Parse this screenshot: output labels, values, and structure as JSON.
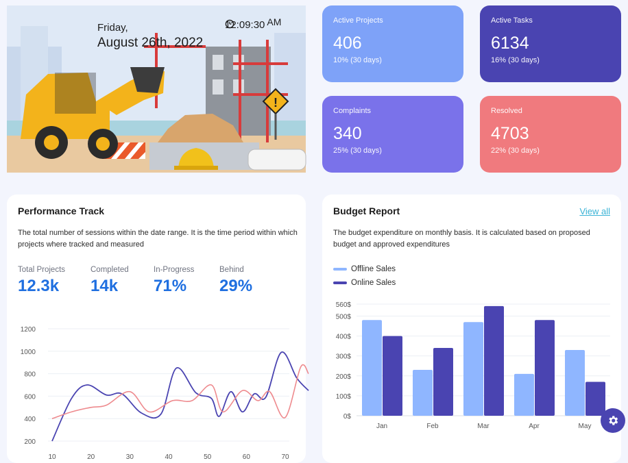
{
  "hero": {
    "day": "Friday,",
    "date": "August 26th, 2022",
    "time": "12:09:30",
    "ampm": "AM",
    "illustration": "construction-scene"
  },
  "stats": [
    {
      "label": "Active Projects",
      "value": "406",
      "sub": "10% (30 days)",
      "color": "#7ea2f8"
    },
    {
      "label": "Active Tasks",
      "value": "6134",
      "sub": "16% (30 days)",
      "color": "#4a44b1"
    },
    {
      "label": "Complaints",
      "value": "340",
      "sub": "25% (30 days)",
      "color": "#7a72ea"
    },
    {
      "label": "Resolved",
      "value": "4703",
      "sub": "22% (30 days)",
      "color": "#f07a7e"
    }
  ],
  "performance": {
    "title": "Performance Track",
    "description": "The total number of sessions within the date range. It is the time period within which projects where tracked and measured",
    "metrics": [
      {
        "label": "Total Projects",
        "value": "12.3k"
      },
      {
        "label": "Completed",
        "value": "14k"
      },
      {
        "label": "In-Progress",
        "value": "71%"
      },
      {
        "label": "Behind",
        "value": "29%"
      }
    ]
  },
  "budget": {
    "title": "Budget Report",
    "view_all": "View all",
    "description": "The budget expenditure on monthly basis. It is calculated based on proposed budget and approved expenditures"
  },
  "settings_icon": "gear-icon",
  "chart_data": [
    {
      "type": "line",
      "x": [
        10,
        20,
        30,
        40,
        50,
        60,
        70
      ],
      "ylim": [
        200,
        1200
      ],
      "yticks": [
        200,
        400,
        600,
        800,
        1000,
        1200
      ],
      "grid": true,
      "series": [
        {
          "color": "#4a44b1",
          "points": [
            [
              10,
              200
            ],
            [
              15,
              580
            ],
            [
              19,
              700
            ],
            [
              24,
              610
            ],
            [
              28,
              620
            ],
            [
              33,
              450
            ],
            [
              38,
              440
            ],
            [
              42,
              850
            ],
            [
              47,
              630
            ],
            [
              51,
              580
            ],
            [
              53,
              420
            ],
            [
              56,
              640
            ],
            [
              59,
              460
            ],
            [
              62,
              620
            ],
            [
              65,
              590
            ],
            [
              69,
              990
            ],
            [
              73,
              760
            ],
            [
              76,
              650
            ]
          ]
        },
        {
          "color": "#ee8a8e",
          "points": [
            [
              10,
              400
            ],
            [
              15,
              460
            ],
            [
              20,
              500
            ],
            [
              24,
              520
            ],
            [
              30,
              640
            ],
            [
              35,
              460
            ],
            [
              41,
              560
            ],
            [
              46,
              560
            ],
            [
              51,
              700
            ],
            [
              54,
              460
            ],
            [
              59,
              650
            ],
            [
              63,
              560
            ],
            [
              66,
              640
            ],
            [
              70,
              410
            ],
            [
              74,
              860
            ],
            [
              77,
              800
            ]
          ]
        }
      ]
    },
    {
      "type": "bar",
      "categories": [
        "Jan",
        "Feb",
        "Mar",
        "Apr",
        "May"
      ],
      "series": [
        {
          "name": "Offline Sales",
          "color": "#8fb6ff",
          "values": [
            480,
            230,
            470,
            210,
            330
          ]
        },
        {
          "name": "Online Sales",
          "color": "#4a44b1",
          "values": [
            400,
            340,
            550,
            480,
            170
          ]
        }
      ],
      "ylim": [
        0,
        560
      ],
      "yticks": [
        0,
        100,
        200,
        300,
        400,
        500
      ],
      "ytick_labels": [
        "0$",
        "100$",
        "200$",
        "300$",
        "400$",
        "500$"
      ],
      "top_tick_label": "560$",
      "legend": "top-left",
      "grid": true
    }
  ]
}
